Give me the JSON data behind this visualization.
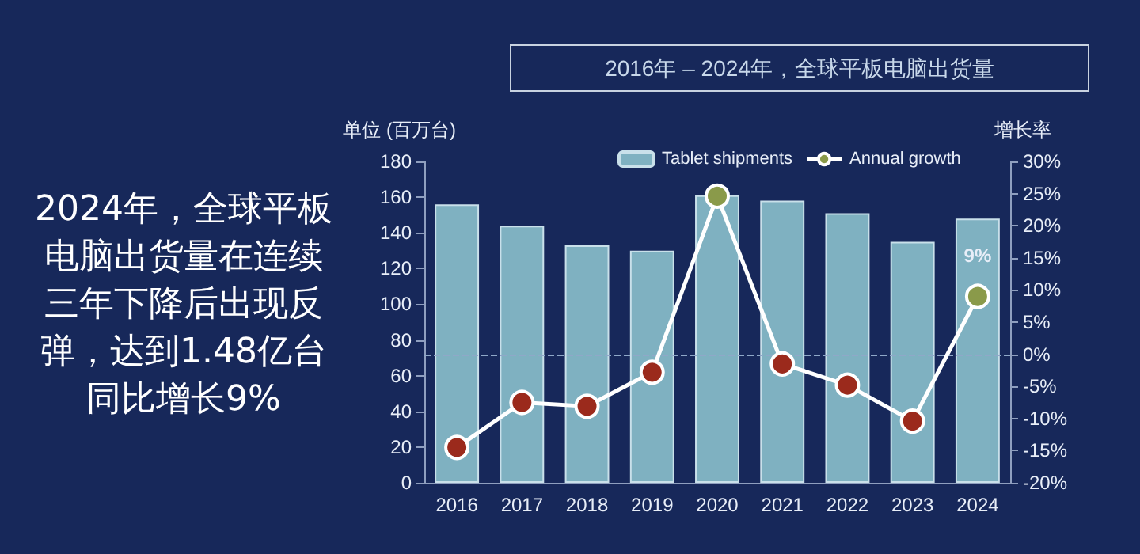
{
  "chart_data": {
    "type": "bar",
    "title": "2016年 – 2024年，全球平板电脑出货量",
    "ylabel": "单位 (百万台)",
    "y2label": "增长率",
    "annotations": [
      "2024年，全球平板电脑出货量在连续三年下降后出现反弹，达到1.48亿台同比增长9%"
    ],
    "categories": [
      "2016",
      "2017",
      "2018",
      "2019",
      "2020",
      "2021",
      "2022",
      "2023",
      "2024"
    ],
    "series": [
      {
        "name": "Tablet shipments",
        "color": "#7fb1c1",
        "values": [
          156,
          144,
          133,
          130,
          161,
          158,
          151,
          135,
          148
        ]
      },
      {
        "name": "Annual growth",
        "type": "line",
        "axis": "y2",
        "color": "#ffffff",
        "colors": [
          "#9b2a1c",
          "#9b2a1c",
          "#9b2a1c",
          "#9b2a1c",
          "#8a9a4a",
          "#9b2a1c",
          "#9b2a1c",
          "#9b2a1c",
          "#8a9a4a"
        ],
        "values": [
          -14.5,
          -7.5,
          -8.1,
          -2.8,
          24.6,
          -1.5,
          -4.8,
          -10.4,
          9
        ],
        "value_labels": [
          null,
          null,
          null,
          null,
          null,
          null,
          null,
          null,
          "9%"
        ]
      }
    ],
    "ylim": [
      0,
      180
    ],
    "yticks": [
      0,
      20,
      40,
      60,
      80,
      100,
      120,
      140,
      160,
      180
    ],
    "y2lim": [
      -20,
      30
    ],
    "y2ticks": [
      {
        "value": -20,
        "label": "-20%"
      },
      {
        "value": -15,
        "label": "-15%"
      },
      {
        "value": -10,
        "label": "-10%"
      },
      {
        "value": -5,
        "label": "-5%"
      },
      {
        "value": 0,
        "label": "0%"
      },
      {
        "value": 5,
        "label": "5%"
      },
      {
        "value": 10,
        "label": "10%"
      },
      {
        "value": 15,
        "label": "15%"
      },
      {
        "value": 20,
        "label": "20%"
      },
      {
        "value": 25,
        "label": "25%"
      },
      {
        "value": 30,
        "label": "30%"
      }
    ],
    "ref_lines": [
      {
        "axis": "y2",
        "value": 0,
        "label": null,
        "color": "#8fa8c8",
        "line_style": "dashed"
      }
    ],
    "legend": "top",
    "grid": false,
    "marker": "circle"
  }
}
